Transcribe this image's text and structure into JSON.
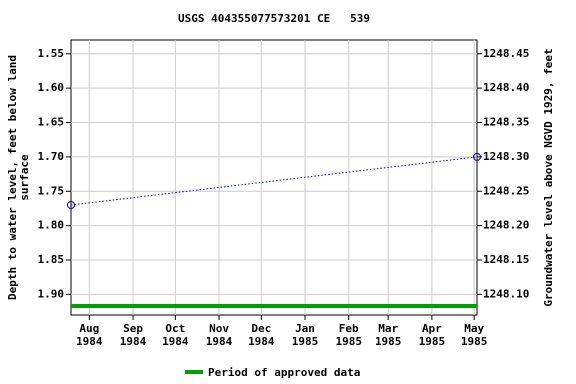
{
  "chart_data": {
    "type": "line",
    "title": "USGS 404355077573201 CE   539",
    "ylabel": [
      "Depth to water level, feet below land",
      "surface"
    ],
    "y2label": "Groundwater level above NGVD 1929, feet",
    "x": [
      "1984-07-19",
      "1985-05-03"
    ],
    "series": [
      {
        "name": "Depth to water level",
        "color": "#0000cc",
        "values": [
          1.77,
          1.7
        ]
      }
    ],
    "xlim": [
      "1984-07-19",
      "1985-05-03"
    ],
    "xticks": [
      {
        "value": "1984-08-01",
        "label": [
          "Aug",
          "1984"
        ]
      },
      {
        "value": "1984-09-01",
        "label": [
          "Sep",
          "1984"
        ]
      },
      {
        "value": "1984-10-01",
        "label": [
          "Oct",
          "1984"
        ]
      },
      {
        "value": "1984-11-01",
        "label": [
          "Nov",
          "1984"
        ]
      },
      {
        "value": "1984-12-01",
        "label": [
          "Dec",
          "1984"
        ]
      },
      {
        "value": "1985-01-01",
        "label": [
          "Jan",
          "1985"
        ]
      },
      {
        "value": "1985-02-01",
        "label": [
          "Feb",
          "1985"
        ]
      },
      {
        "value": "1985-03-01",
        "label": [
          "Mar",
          "1985"
        ]
      },
      {
        "value": "1985-04-01",
        "label": [
          "Apr",
          "1985"
        ]
      },
      {
        "value": "1985-05-01",
        "label": [
          "May",
          "1985"
        ]
      }
    ],
    "ylim": [
      1.93,
      1.53
    ],
    "yticks": [
      {
        "value": 1.55,
        "label": "1.55"
      },
      {
        "value": 1.6,
        "label": "1.60"
      },
      {
        "value": 1.65,
        "label": "1.65"
      },
      {
        "value": 1.7,
        "label": "1.70"
      },
      {
        "value": 1.75,
        "label": "1.75"
      },
      {
        "value": 1.8,
        "label": "1.80"
      },
      {
        "value": 1.85,
        "label": "1.85"
      },
      {
        "value": 1.9,
        "label": "1.90"
      }
    ],
    "y2lim": [
      1248.07,
      1248.47
    ],
    "y2ticks": [
      {
        "value": 1248.45,
        "label": "1248.45"
      },
      {
        "value": 1248.4,
        "label": "1248.40"
      },
      {
        "value": 1248.35,
        "label": "1248.35"
      },
      {
        "value": 1248.3,
        "label": "1248.30"
      },
      {
        "value": 1248.25,
        "label": "1248.25"
      },
      {
        "value": 1248.2,
        "label": "1248.20"
      },
      {
        "value": 1248.15,
        "label": "1248.15"
      },
      {
        "value": 1248.1,
        "label": "1248.10"
      }
    ],
    "grid": true,
    "approved": {
      "name": "Period of approved data",
      "color": "#00a000"
    }
  }
}
